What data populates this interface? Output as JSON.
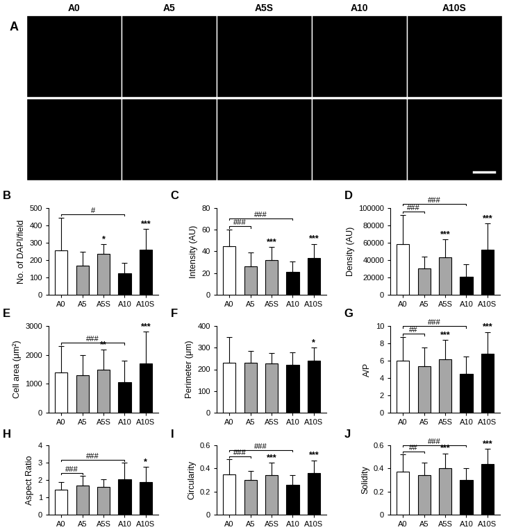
{
  "image_panel": {
    "label": "A",
    "columns": [
      "A0",
      "A5",
      "A5S",
      "A10",
      "A10S"
    ]
  },
  "chart_data": [
    {
      "type": "bar",
      "panel": "B",
      "ylabel": "No. of DAPI/field",
      "categories": [
        "A0",
        "A5",
        "A5S",
        "A10",
        "A10S"
      ],
      "values": [
        255,
        168,
        235,
        125,
        258
      ],
      "error": [
        190,
        80,
        55,
        58,
        120
      ],
      "colors": [
        "#ffffff",
        "#a6a6a6",
        "#a6a6a6",
        "#000000",
        "#000000"
      ],
      "ylim": [
        0,
        500
      ],
      "yticks": [
        0,
        100,
        200,
        300,
        400,
        500
      ],
      "annotations": [
        {
          "category": "A5S",
          "text": "*"
        },
        {
          "category": "A10S",
          "text": "***"
        }
      ],
      "brackets": [
        {
          "from": "A0",
          "to": "A10",
          "text": "#"
        }
      ]
    },
    {
      "type": "bar",
      "panel": "C",
      "ylabel": "Intensity (AU)",
      "categories": [
        "A0",
        "A5",
        "A5S",
        "A10",
        "A10S"
      ],
      "values": [
        45,
        26,
        32,
        21,
        34
      ],
      "error": [
        15,
        13,
        12,
        10,
        13
      ],
      "colors": [
        "#ffffff",
        "#a6a6a6",
        "#a6a6a6",
        "#000000",
        "#000000"
      ],
      "ylim": [
        0,
        80
      ],
      "yticks": [
        0,
        20,
        40,
        60,
        80
      ],
      "annotations": [
        {
          "category": "A5S",
          "text": "***"
        },
        {
          "category": "A10S",
          "text": "***"
        }
      ],
      "brackets": [
        {
          "from": "A0",
          "to": "A5",
          "text": "###"
        },
        {
          "from": "A0",
          "to": "A10",
          "text": "###"
        }
      ]
    },
    {
      "type": "bar",
      "panel": "D",
      "ylabel": "Density (AU)",
      "categories": [
        "A0",
        "A5",
        "A5S",
        "A10",
        "A10S"
      ],
      "values": [
        58000,
        30000,
        43000,
        21000,
        52000
      ],
      "error": [
        34000,
        14000,
        21000,
        14000,
        30000
      ],
      "colors": [
        "#ffffff",
        "#a6a6a6",
        "#a6a6a6",
        "#000000",
        "#000000"
      ],
      "ylim": [
        0,
        100000
      ],
      "yticks": [
        0,
        20000,
        40000,
        60000,
        80000,
        100000
      ],
      "annotations": [
        {
          "category": "A5S",
          "text": "***"
        },
        {
          "category": "A10S",
          "text": "***"
        }
      ],
      "brackets": [
        {
          "from": "A0",
          "to": "A5",
          "text": "###"
        },
        {
          "from": "A0",
          "to": "A10",
          "text": "###"
        }
      ]
    },
    {
      "type": "bar",
      "panel": "E",
      "ylabel": "Cell area (μm²)",
      "categories": [
        "A0",
        "A5",
        "A5S",
        "A10",
        "A10S"
      ],
      "values": [
        1390,
        1290,
        1480,
        1060,
        1700
      ],
      "error": [
        910,
        700,
        700,
        740,
        1100
      ],
      "colors": [
        "#ffffff",
        "#a6a6a6",
        "#a6a6a6",
        "#000000",
        "#000000"
      ],
      "ylim": [
        0,
        3000
      ],
      "yticks": [
        0,
        1000,
        2000,
        3000
      ],
      "annotations": [
        {
          "category": "A5S",
          "text": "**"
        },
        {
          "category": "A10S",
          "text": "***"
        }
      ],
      "brackets": [
        {
          "from": "A0",
          "to": "A10",
          "text": "###"
        }
      ]
    },
    {
      "type": "bar",
      "panel": "F",
      "ylabel": "Perimeter (μm)",
      "categories": [
        "A0",
        "A5",
        "A5S",
        "A10",
        "A10S"
      ],
      "values": [
        232,
        230,
        228,
        222,
        240
      ],
      "error": [
        116,
        55,
        47,
        58,
        60
      ],
      "colors": [
        "#ffffff",
        "#a6a6a6",
        "#a6a6a6",
        "#000000",
        "#000000"
      ],
      "ylim": [
        0,
        400
      ],
      "yticks": [
        0,
        100,
        200,
        300,
        400
      ],
      "annotations": [
        {
          "category": "A10S",
          "text": "*"
        }
      ],
      "brackets": []
    },
    {
      "type": "bar",
      "panel": "G",
      "ylabel": "A/P",
      "categories": [
        "A0",
        "A5",
        "A5S",
        "A10",
        "A10S"
      ],
      "values": [
        6.0,
        5.4,
        6.2,
        4.5,
        6.8
      ],
      "error": [
        2.7,
        2.1,
        2.2,
        2.0,
        2.5
      ],
      "colors": [
        "#ffffff",
        "#a6a6a6",
        "#a6a6a6",
        "#000000",
        "#000000"
      ],
      "ylim": [
        0,
        10
      ],
      "yticks": [
        0,
        2,
        4,
        6,
        8,
        10
      ],
      "annotations": [
        {
          "category": "A5S",
          "text": "***"
        },
        {
          "category": "A10S",
          "text": "***"
        }
      ],
      "brackets": [
        {
          "from": "A0",
          "to": "A5",
          "text": "##"
        },
        {
          "from": "A0",
          "to": "A10",
          "text": "###"
        }
      ]
    },
    {
      "type": "bar",
      "panel": "H",
      "ylabel": "Aspect Ratio",
      "categories": [
        "A0",
        "A5",
        "A5S",
        "A10",
        "A10S"
      ],
      "values": [
        1.45,
        1.7,
        1.6,
        2.05,
        1.9
      ],
      "error": [
        0.45,
        0.55,
        0.45,
        0.95,
        0.85
      ],
      "colors": [
        "#ffffff",
        "#a6a6a6",
        "#a6a6a6",
        "#000000",
        "#000000"
      ],
      "ylim": [
        0,
        4
      ],
      "yticks": [
        0,
        1,
        2,
        3,
        4
      ],
      "annotations": [
        {
          "category": "A10S",
          "text": "*"
        }
      ],
      "brackets": [
        {
          "from": "A0",
          "to": "A5",
          "text": "###"
        },
        {
          "from": "A0",
          "to": "A10",
          "text": "###"
        }
      ]
    },
    {
      "type": "bar",
      "panel": "I",
      "ylabel": "Circularity",
      "categories": [
        "A0",
        "A5",
        "A5S",
        "A10",
        "A10S"
      ],
      "values": [
        0.35,
        0.3,
        0.345,
        0.26,
        0.36
      ],
      "error": [
        0.13,
        0.08,
        0.105,
        0.08,
        0.11
      ],
      "colors": [
        "#ffffff",
        "#a6a6a6",
        "#a6a6a6",
        "#000000",
        "#000000"
      ],
      "ylim": [
        0,
        0.6
      ],
      "yticks": [
        0,
        0.2,
        0.4,
        0.6
      ],
      "annotations": [
        {
          "category": "A5S",
          "text": "***"
        },
        {
          "category": "A10S",
          "text": "***"
        }
      ],
      "brackets": [
        {
          "from": "A0",
          "to": "A5",
          "text": "###"
        },
        {
          "from": "A0",
          "to": "A10",
          "text": "###"
        }
      ]
    },
    {
      "type": "bar",
      "panel": "J",
      "ylabel": "Solidity",
      "categories": [
        "A0",
        "A5",
        "A5S",
        "A10",
        "A10S"
      ],
      "values": [
        0.375,
        0.34,
        0.4,
        0.3,
        0.44
      ],
      "error": [
        0.145,
        0.11,
        0.13,
        0.1,
        0.13
      ],
      "colors": [
        "#ffffff",
        "#a6a6a6",
        "#a6a6a6",
        "#000000",
        "#000000"
      ],
      "ylim": [
        0,
        0.6
      ],
      "yticks": [
        0,
        0.2,
        0.4,
        0.6
      ],
      "annotations": [
        {
          "category": "A5S",
          "text": "***"
        },
        {
          "category": "A10S",
          "text": "***"
        }
      ],
      "brackets": [
        {
          "from": "A0",
          "to": "A5",
          "text": "##"
        },
        {
          "from": "A0",
          "to": "A10",
          "text": "###"
        }
      ]
    }
  ]
}
